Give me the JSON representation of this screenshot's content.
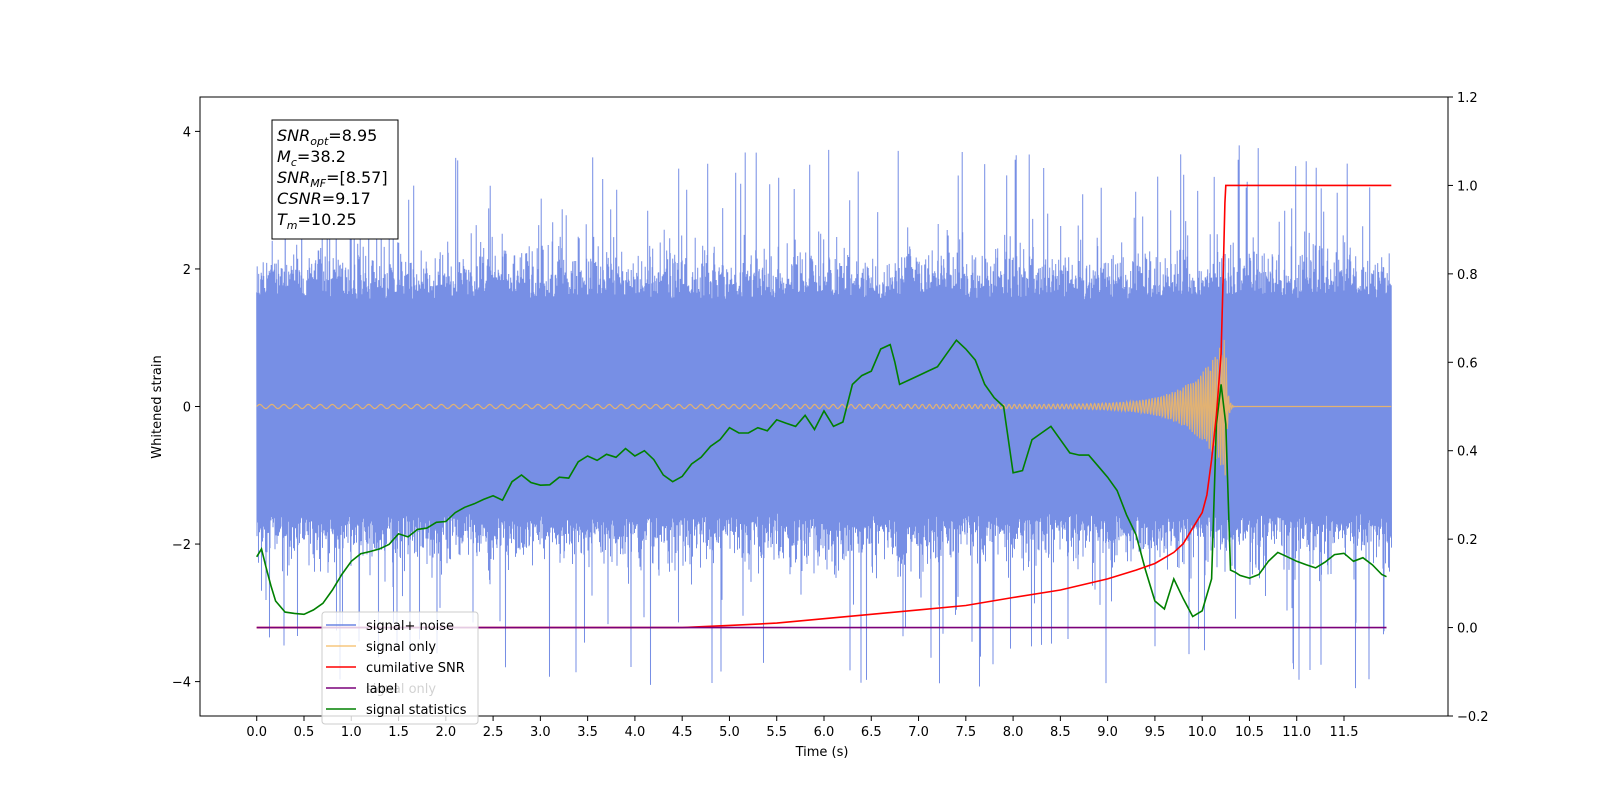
{
  "chart_data": {
    "type": "line",
    "xlabel": "Time (s)",
    "ylabel": "Whitened strain",
    "xlim": [
      -0.6,
      12.6
    ],
    "ylim": [
      -4.5,
      4.5
    ],
    "y2lim": [
      -0.2,
      1.2
    ],
    "x_ticks": [
      0.0,
      0.5,
      1.0,
      1.5,
      2.0,
      2.5,
      3.0,
      3.5,
      4.0,
      4.5,
      5.0,
      5.5,
      6.0,
      6.5,
      7.0,
      7.5,
      8.0,
      8.5,
      9.0,
      9.5,
      10.0,
      10.5,
      11.0,
      11.5
    ],
    "x_tick_labels": [
      "0.0",
      "0.5",
      "1.0",
      "1.5",
      "2.0",
      "2.5",
      "3.0",
      "3.5",
      "4.0",
      "4.5",
      "5.0",
      "5.5",
      "6.0",
      "6.5",
      "7.0",
      "7.5",
      "8.0",
      "8.5",
      "9.0",
      "9.5",
      "10.0",
      "10.5",
      "11.0",
      "11.5"
    ],
    "y_ticks": [
      -4,
      -2,
      0,
      2,
      4
    ],
    "y_tick_labels": [
      "−4",
      "−2",
      "0",
      "2",
      "4"
    ],
    "y2_ticks": [
      -0.2,
      0.0,
      0.2,
      0.4,
      0.6,
      0.8,
      1.0,
      1.2
    ],
    "y2_tick_labels": [
      "−0.2",
      "0.0",
      "0.2",
      "0.4",
      "0.6",
      "0.8",
      "1.0",
      "1.2"
    ],
    "noise_band": {
      "x_start": 0.0,
      "x_end": 12.0,
      "typical_max": 2.3,
      "typical_min": -2.2,
      "peak_max": 3.8,
      "peak_min": -4.1
    },
    "info_box": [
      {
        "main": "SNR",
        "sub": "opt",
        "rest": "=8.95"
      },
      {
        "main": "M",
        "sub": "c",
        "rest": "=38.2"
      },
      {
        "main": "SNR",
        "sub": "MF",
        "rest": "=[8.57]"
      },
      {
        "main": "CSNR",
        "sub": "",
        "rest": "=9.17"
      },
      {
        "main": "T",
        "sub": "m",
        "rest": "=10.25"
      }
    ],
    "legend": {
      "placement": "lower-left",
      "entries": [
        {
          "label": "signal+ noise",
          "color": "#6b86e3"
        },
        {
          "label": "signal only",
          "color": "#f5b95e"
        },
        {
          "label": "cumilative SNR",
          "color": "#ff0000"
        },
        {
          "label": "label",
          "color": "#7a007a"
        },
        {
          "label": "signal statistics",
          "color": "#008000"
        }
      ],
      "hidden_label": "signal only"
    },
    "series": [
      {
        "name": "signal statistics",
        "axis": "right",
        "color": "#008000",
        "x": [
          0.0,
          0.05,
          0.1,
          0.15,
          0.2,
          0.3,
          0.4,
          0.5,
          0.6,
          0.7,
          0.8,
          0.9,
          1.0,
          1.1,
          1.2,
          1.3,
          1.4,
          1.5,
          1.6,
          1.7,
          1.8,
          1.9,
          2.0,
          2.1,
          2.2,
          2.3,
          2.4,
          2.5,
          2.6,
          2.7,
          2.8,
          2.9,
          3.0,
          3.1,
          3.2,
          3.3,
          3.4,
          3.5,
          3.6,
          3.7,
          3.8,
          3.9,
          4.0,
          4.1,
          4.2,
          4.3,
          4.4,
          4.5,
          4.6,
          4.7,
          4.8,
          4.9,
          5.0,
          5.1,
          5.2,
          5.3,
          5.4,
          5.5,
          5.6,
          5.7,
          5.8,
          5.9,
          6.0,
          6.1,
          6.2,
          6.3,
          6.4,
          6.5,
          6.6,
          6.7,
          6.75,
          6.8,
          6.9,
          7.0,
          7.1,
          7.2,
          7.3,
          7.4,
          7.5,
          7.6,
          7.7,
          7.8,
          7.9,
          8.0,
          8.1,
          8.2,
          8.3,
          8.4,
          8.5,
          8.6,
          8.7,
          8.8,
          8.9,
          9.0,
          9.1,
          9.2,
          9.3,
          9.4,
          9.5,
          9.6,
          9.7,
          9.8,
          9.9,
          10.0,
          10.1,
          10.15,
          10.2,
          10.25,
          10.3,
          10.35,
          10.4,
          10.5,
          10.6,
          10.7,
          10.8,
          10.9,
          11.0,
          11.1,
          11.2,
          11.3,
          11.4,
          11.5,
          11.6,
          11.7,
          11.8,
          11.9,
          11.95
        ],
        "y": [
          0.16,
          0.178,
          0.135,
          0.095,
          0.06,
          0.035,
          0.032,
          0.03,
          0.04,
          0.055,
          0.085,
          0.12,
          0.15,
          0.167,
          0.172,
          0.178,
          0.188,
          0.212,
          0.205,
          0.222,
          0.225,
          0.238,
          0.24,
          0.26,
          0.272,
          0.28,
          0.29,
          0.298,
          0.288,
          0.33,
          0.345,
          0.328,
          0.322,
          0.323,
          0.34,
          0.338,
          0.375,
          0.388,
          0.378,
          0.392,
          0.385,
          0.405,
          0.388,
          0.4,
          0.38,
          0.345,
          0.33,
          0.342,
          0.37,
          0.385,
          0.41,
          0.425,
          0.452,
          0.44,
          0.44,
          0.452,
          0.445,
          0.47,
          0.462,
          0.455,
          0.48,
          0.448,
          0.49,
          0.455,
          0.465,
          0.55,
          0.57,
          0.58,
          0.63,
          0.64,
          0.6,
          0.55,
          0.56,
          0.57,
          0.58,
          0.59,
          0.62,
          0.65,
          0.63,
          0.605,
          0.55,
          0.52,
          0.5,
          0.35,
          0.355,
          0.425,
          0.44,
          0.455,
          0.425,
          0.395,
          0.39,
          0.39,
          0.365,
          0.34,
          0.31,
          0.255,
          0.21,
          0.13,
          0.06,
          0.042,
          0.11,
          0.065,
          0.025,
          0.038,
          0.11,
          0.46,
          0.55,
          0.46,
          0.13,
          0.125,
          0.118,
          0.112,
          0.12,
          0.15,
          0.17,
          0.16,
          0.15,
          0.142,
          0.135,
          0.148,
          0.165,
          0.168,
          0.15,
          0.158,
          0.142,
          0.12,
          0.115
        ]
      },
      {
        "name": "cumilative SNR",
        "axis": "right",
        "color": "#ff0000",
        "x": [
          0.0,
          1.0,
          2.0,
          3.0,
          4.0,
          4.5,
          5.0,
          5.5,
          6.0,
          6.5,
          7.0,
          7.5,
          8.0,
          8.5,
          9.0,
          9.3,
          9.5,
          9.7,
          9.8,
          9.9,
          10.0,
          10.05,
          10.1,
          10.15,
          10.2,
          10.22,
          10.24,
          10.25,
          10.5,
          11.0,
          11.5,
          12.0
        ],
        "y": [
          0.0,
          0.0,
          0.0,
          0.0,
          0.0,
          0.0,
          0.005,
          0.01,
          0.02,
          0.03,
          0.04,
          0.05,
          0.068,
          0.085,
          0.11,
          0.13,
          0.145,
          0.17,
          0.19,
          0.225,
          0.26,
          0.3,
          0.38,
          0.48,
          0.62,
          0.78,
          0.96,
          1.0,
          1.0,
          1.0,
          1.0,
          1.0
        ]
      },
      {
        "name": "label",
        "axis": "right",
        "color": "#7a007a",
        "x": [
          0.0,
          11.95
        ],
        "y": [
          0.0,
          0.0
        ]
      }
    ],
    "chirp": {
      "name": "signal only",
      "color": "#f5b95e",
      "x_start": 0.0,
      "x_merge": 10.25,
      "x_end": 12.0,
      "peak_amplitude": 1.0
    }
  }
}
